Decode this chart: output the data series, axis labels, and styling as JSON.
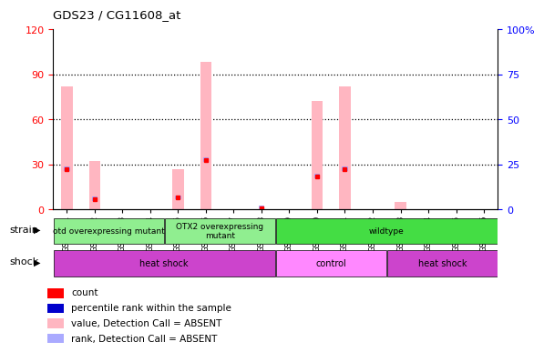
{
  "title": "GDS23 / CG11608_at",
  "samples": [
    "GSM1351",
    "GSM1352",
    "GSM1353",
    "GSM1354",
    "GSM1355",
    "GSM1356",
    "GSM1357",
    "GSM1358",
    "GSM1359",
    "GSM1360",
    "GSM1361",
    "GSM1362",
    "GSM1363",
    "GSM1364",
    "GSM1365",
    "GSM1366"
  ],
  "pink_bar_values": [
    82,
    32,
    0,
    0,
    27,
    98,
    0,
    0,
    0,
    72,
    82,
    0,
    5,
    0,
    0,
    0
  ],
  "blue_bar_values": [
    27,
    7,
    0,
    0,
    8,
    33,
    0,
    1,
    0,
    22,
    27,
    0,
    0,
    0,
    0,
    0
  ],
  "red_dot_values": [
    27,
    7,
    0,
    0,
    8,
    33,
    0,
    1,
    0,
    22,
    27,
    0,
    0,
    0,
    0,
    0
  ],
  "ylim_left": [
    0,
    120
  ],
  "ylim_right": [
    0,
    100
  ],
  "yticks_left": [
    0,
    30,
    60,
    90,
    120
  ],
  "yticks_right": [
    0,
    25,
    50,
    75,
    100
  ],
  "ytick_labels_right": [
    "0",
    "25",
    "50",
    "75",
    "100%"
  ],
  "strain_groups": [
    {
      "label": "otd overexpressing mutant",
      "start": 0,
      "end": 4,
      "color": "#90EE90"
    },
    {
      "label": "OTX2 overexpressing\nmutant",
      "start": 4,
      "end": 8,
      "color": "#90EE90"
    },
    {
      "label": "wildtype",
      "start": 8,
      "end": 16,
      "color": "#44DD44"
    }
  ],
  "shock_groups": [
    {
      "label": "heat shock",
      "start": 0,
      "end": 8,
      "color": "#CC44CC"
    },
    {
      "label": "control",
      "start": 8,
      "end": 12,
      "color": "#FF88FF"
    },
    {
      "label": "heat shock",
      "start": 12,
      "end": 16,
      "color": "#CC44CC"
    }
  ],
  "pink_color": "#FFB6C1",
  "blue_color": "#AAAAFF",
  "red_color": "#FF0000",
  "grid_yticks": [
    30,
    60,
    90
  ],
  "legend_colors": [
    "#FF0000",
    "#0000CC",
    "#FFB6C1",
    "#AAAAFF"
  ],
  "legend_labels": [
    "count",
    "percentile rank within the sample",
    "value, Detection Call = ABSENT",
    "rank, Detection Call = ABSENT"
  ]
}
